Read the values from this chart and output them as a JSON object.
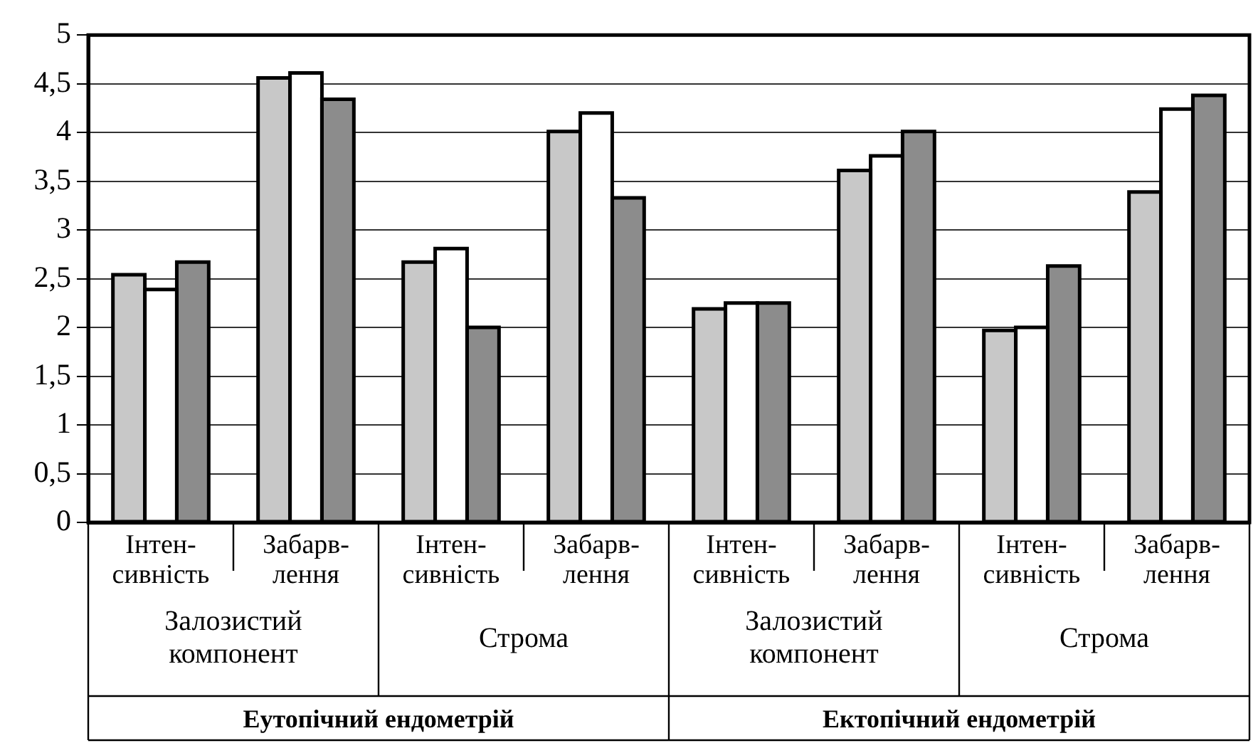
{
  "chart_data": {
    "type": "bar",
    "categories": [
      "Інтен-сивність",
      "Забарв-лення",
      "Інтен-сивність",
      "Забарв-лення",
      "Інтен-сивність",
      "Забарв-лення",
      "Інтен-сивність",
      "Забарв-лення"
    ],
    "series": [
      {
        "color": "#c8c8c8",
        "values": [
          2.54,
          4.56,
          2.67,
          4.01,
          2.19,
          3.61,
          1.97,
          3.39
        ]
      },
      {
        "color": "#ffffff",
        "values": [
          2.39,
          4.61,
          2.81,
          4.2,
          2.25,
          3.76,
          2.0,
          4.24
        ]
      },
      {
        "color": "#8c8c8c",
        "values": [
          2.67,
          4.34,
          2.0,
          3.33,
          2.25,
          4.01,
          2.63,
          4.38
        ]
      }
    ],
    "annotations": [
      "Залозистий компонент",
      "Строма",
      "Залозистий компонент",
      "Строма",
      "Еутопічний ендометрій",
      "Ектопічний ендометрій"
    ],
    "ylim": [
      0,
      5
    ],
    "yticks": [
      0,
      {
        "value": 0.5,
        "label": "0,5"
      },
      1,
      {
        "value": 1.5,
        "label": "1,5"
      },
      2,
      {
        "value": 2.5,
        "label": "2,5"
      },
      3,
      {
        "value": 3.5,
        "label": "3,5"
      },
      4,
      {
        "value": 4.5,
        "label": "4,5"
      },
      5
    ],
    "grid": "y",
    "legend": false
  }
}
